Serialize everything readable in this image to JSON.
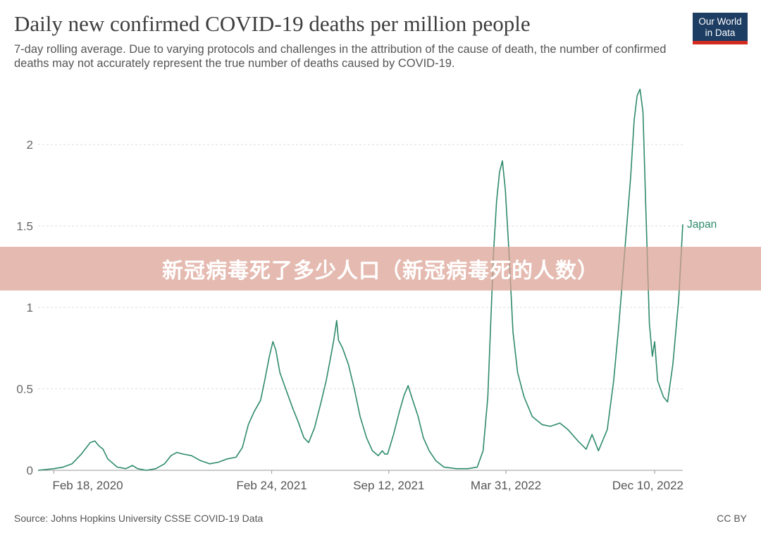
{
  "title": "Daily new confirmed COVID-19 deaths per million people",
  "subtitle": "7-day rolling average. Due to varying protocols and challenges in the attribution of the cause of death, the number of confirmed deaths may not accurately represent the true number of deaths caused by COVID-19.",
  "logo": {
    "line1": "Our World",
    "line2": "in Data"
  },
  "source": "Source: Johns Hopkins University CSSE COVID-19 Data",
  "license": "CC BY",
  "banner": "新冠病毒死了多少人口（新冠病毒死的人数）",
  "colors": {
    "series": "#2e8a6c",
    "grid": "#dddddd",
    "logo_bg": "#1d3d63",
    "logo_accent": "#d42b21"
  },
  "chart_data": {
    "type": "line",
    "title": "Daily new confirmed COVID-19 deaths per million people",
    "xlabel": "",
    "ylabel": "",
    "ylim": [
      0,
      2.35
    ],
    "yticks": [
      0,
      0.5,
      1,
      1.5,
      2
    ],
    "ytick_labels": [
      "0",
      "0.5",
      "1",
      "1.5",
      "2"
    ],
    "xlim": [
      "2020-01-22",
      "2023-01-27"
    ],
    "xticks": [
      "2020-02-18",
      "2021-02-24",
      "2021-09-12",
      "2022-03-31",
      "2022-12-10"
    ],
    "xtick_labels": [
      "Feb 18, 2020",
      "Feb 24, 2021",
      "Sep 12, 2021",
      "Mar 31, 2022",
      "Dec 10, 2022"
    ],
    "grid": true,
    "legend": "right-end label",
    "series": [
      {
        "name": "Japan",
        "points": [
          [
            "2020-01-22",
            0.0
          ],
          [
            "2020-02-18",
            0.01
          ],
          [
            "2020-03-05",
            0.02
          ],
          [
            "2020-03-20",
            0.04
          ],
          [
            "2020-04-05",
            0.1
          ],
          [
            "2020-04-20",
            0.17
          ],
          [
            "2020-04-28",
            0.18
          ],
          [
            "2020-05-05",
            0.15
          ],
          [
            "2020-05-12",
            0.13
          ],
          [
            "2020-05-20",
            0.07
          ],
          [
            "2020-06-05",
            0.02
          ],
          [
            "2020-06-20",
            0.01
          ],
          [
            "2020-07-01",
            0.03
          ],
          [
            "2020-07-10",
            0.01
          ],
          [
            "2020-07-25",
            0.0
          ],
          [
            "2020-08-10",
            0.01
          ],
          [
            "2020-08-25",
            0.04
          ],
          [
            "2020-09-05",
            0.09
          ],
          [
            "2020-09-15",
            0.11
          ],
          [
            "2020-09-25",
            0.1
          ],
          [
            "2020-10-10",
            0.09
          ],
          [
            "2020-10-25",
            0.06
          ],
          [
            "2020-11-10",
            0.04
          ],
          [
            "2020-11-25",
            0.05
          ],
          [
            "2020-12-10",
            0.07
          ],
          [
            "2020-12-25",
            0.08
          ],
          [
            "2021-01-05",
            0.14
          ],
          [
            "2021-01-15",
            0.28
          ],
          [
            "2021-01-25",
            0.36
          ],
          [
            "2021-02-05",
            0.43
          ],
          [
            "2021-02-12",
            0.55
          ],
          [
            "2021-02-20",
            0.7
          ],
          [
            "2021-02-26",
            0.79
          ],
          [
            "2021-03-03",
            0.74
          ],
          [
            "2021-03-10",
            0.6
          ],
          [
            "2021-03-20",
            0.5
          ],
          [
            "2021-04-01",
            0.38
          ],
          [
            "2021-04-10",
            0.3
          ],
          [
            "2021-04-20",
            0.2
          ],
          [
            "2021-04-28",
            0.17
          ],
          [
            "2021-05-08",
            0.26
          ],
          [
            "2021-05-18",
            0.4
          ],
          [
            "2021-05-28",
            0.55
          ],
          [
            "2021-06-05",
            0.7
          ],
          [
            "2021-06-10",
            0.8
          ],
          [
            "2021-06-15",
            0.92
          ],
          [
            "2021-06-18",
            0.8
          ],
          [
            "2021-06-25",
            0.75
          ],
          [
            "2021-07-05",
            0.65
          ],
          [
            "2021-07-15",
            0.5
          ],
          [
            "2021-07-25",
            0.33
          ],
          [
            "2021-08-05",
            0.2
          ],
          [
            "2021-08-15",
            0.12
          ],
          [
            "2021-08-25",
            0.09
          ],
          [
            "2021-09-01",
            0.12
          ],
          [
            "2021-09-05",
            0.1
          ],
          [
            "2021-09-10",
            0.1
          ],
          [
            "2021-09-20",
            0.22
          ],
          [
            "2021-09-30",
            0.36
          ],
          [
            "2021-10-08",
            0.46
          ],
          [
            "2021-10-15",
            0.52
          ],
          [
            "2021-10-22",
            0.44
          ],
          [
            "2021-11-01",
            0.33
          ],
          [
            "2021-11-10",
            0.2
          ],
          [
            "2021-11-20",
            0.12
          ],
          [
            "2021-12-01",
            0.06
          ],
          [
            "2021-12-15",
            0.02
          ],
          [
            "2022-01-05",
            0.01
          ],
          [
            "2022-01-25",
            0.01
          ],
          [
            "2022-02-10",
            0.02
          ],
          [
            "2022-02-20",
            0.12
          ],
          [
            "2022-02-28",
            0.45
          ],
          [
            "2022-03-05",
            0.9
          ],
          [
            "2022-03-10",
            1.35
          ],
          [
            "2022-03-15",
            1.65
          ],
          [
            "2022-03-20",
            1.83
          ],
          [
            "2022-03-25",
            1.9
          ],
          [
            "2022-03-30",
            1.72
          ],
          [
            "2022-04-05",
            1.35
          ],
          [
            "2022-04-12",
            0.85
          ],
          [
            "2022-04-20",
            0.6
          ],
          [
            "2022-05-01",
            0.45
          ],
          [
            "2022-05-15",
            0.33
          ],
          [
            "2022-06-01",
            0.28
          ],
          [
            "2022-06-15",
            0.27
          ],
          [
            "2022-07-01",
            0.29
          ],
          [
            "2022-07-15",
            0.25
          ],
          [
            "2022-08-01",
            0.18
          ],
          [
            "2022-08-15",
            0.13
          ],
          [
            "2022-08-25",
            0.22
          ],
          [
            "2022-09-05",
            0.12
          ],
          [
            "2022-09-20",
            0.25
          ],
          [
            "2022-10-01",
            0.55
          ],
          [
            "2022-10-10",
            0.9
          ],
          [
            "2022-10-20",
            1.35
          ],
          [
            "2022-10-30",
            1.8
          ],
          [
            "2022-11-05",
            2.15
          ],
          [
            "2022-11-10",
            2.3
          ],
          [
            "2022-11-15",
            2.34
          ],
          [
            "2022-11-20",
            2.2
          ],
          [
            "2022-11-25",
            1.6
          ],
          [
            "2022-12-01",
            0.9
          ],
          [
            "2022-12-06",
            0.7
          ],
          [
            "2022-12-10",
            0.79
          ],
          [
            "2022-12-15",
            0.55
          ],
          [
            "2022-12-25",
            0.45
          ],
          [
            "2023-01-01",
            0.42
          ],
          [
            "2023-01-10",
            0.65
          ],
          [
            "2023-01-20",
            1.05
          ],
          [
            "2023-01-27",
            1.51
          ]
        ]
      }
    ]
  }
}
